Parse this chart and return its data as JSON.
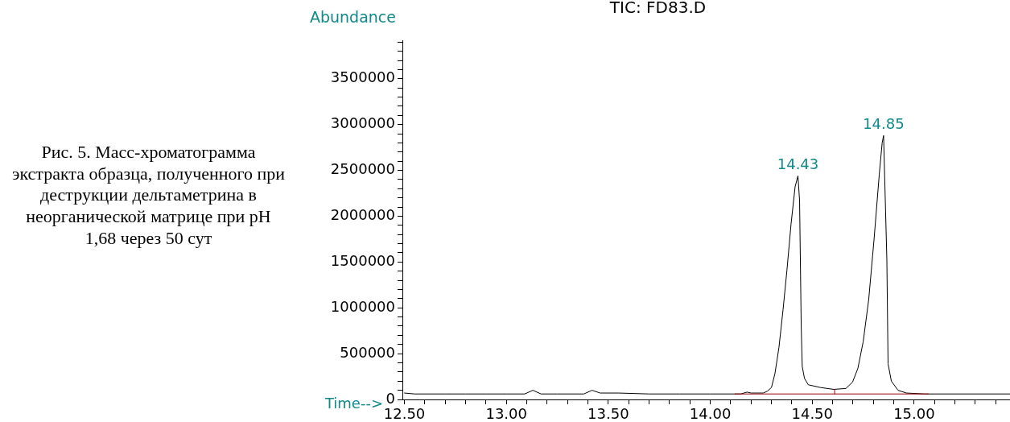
{
  "chart_data": {
    "type": "line",
    "title": "TIC: FD83.D",
    "xlabel": "Time-->",
    "ylabel": "Abundance",
    "annotations": [
      "Рис. 5. Масс-хроматограмма экстракта образца, полученного при деструкции дельтаметрина в неорганической матрице при pH 1,68 через 50 сут",
      {
        "text": "14.43",
        "x": 14.43,
        "y": 2440000
      },
      {
        "text": "14.85",
        "x": 14.85,
        "y": 2880000
      }
    ],
    "series": [
      {
        "color": "#000000",
        "x": [
          12.5,
          12.55,
          12.62,
          12.7,
          12.8,
          12.9,
          13.0,
          13.09,
          13.13,
          13.17,
          13.25,
          13.38,
          13.42,
          13.46,
          13.55,
          13.7,
          13.85,
          14.0,
          14.15,
          14.18,
          14.2,
          14.26,
          14.28,
          14.3,
          14.317,
          14.337,
          14.357,
          14.376,
          14.396,
          14.416,
          14.43,
          14.438,
          14.446,
          14.451,
          14.462,
          14.481,
          14.541,
          14.606,
          14.665,
          14.698,
          14.724,
          14.75,
          14.777,
          14.803,
          14.829,
          14.843,
          14.85,
          14.866,
          14.872,
          14.888,
          14.921,
          14.961,
          15.05,
          15.17,
          15.3,
          15.47
        ],
        "values": [
          70000,
          60000,
          60000,
          60000,
          60000,
          60000,
          60000,
          60000,
          100000,
          60000,
          60000,
          60000,
          100000,
          70000,
          70000,
          60000,
          60000,
          60000,
          60000,
          80000,
          70000,
          70000,
          90000,
          130000,
          280000,
          570000,
          980000,
          1410000,
          1910000,
          2320000,
          2440000,
          2170000,
          800000,
          360000,
          230000,
          160000,
          130000,
          110000,
          120000,
          190000,
          340000,
          630000,
          1090000,
          1740000,
          2460000,
          2800000,
          2880000,
          1530000,
          390000,
          200000,
          100000,
          70000,
          60000,
          60000,
          60000,
          60000
        ]
      },
      {
        "color": "#990000",
        "x": [
          14.12,
          15.07
        ],
        "values": [
          60000,
          60000
        ]
      },
      {
        "color": "#990000",
        "x": [
          14.61,
          14.61
        ],
        "values": [
          60000,
          110000
        ]
      }
    ],
    "xlim": [
      12.49,
      15.47
    ],
    "ylim": [
      0,
      3920000
    ],
    "xticks": [
      {
        "value": 12.5,
        "label": "12.50"
      },
      {
        "value": 12.6,
        "label": null
      },
      {
        "value": 12.7,
        "label": null
      },
      {
        "value": 12.8,
        "label": null
      },
      {
        "value": 12.9,
        "label": null
      },
      {
        "value": 13.0,
        "label": "13.00"
      },
      {
        "value": 13.1,
        "label": null
      },
      {
        "value": 13.2,
        "label": null
      },
      {
        "value": 13.3,
        "label": null
      },
      {
        "value": 13.4,
        "label": null
      },
      {
        "value": 13.5,
        "label": "13.50"
      },
      {
        "value": 13.6,
        "label": null
      },
      {
        "value": 13.7,
        "label": null
      },
      {
        "value": 13.8,
        "label": null
      },
      {
        "value": 13.9,
        "label": null
      },
      {
        "value": 14.0,
        "label": "14.00"
      },
      {
        "value": 14.1,
        "label": null
      },
      {
        "value": 14.2,
        "label": null
      },
      {
        "value": 14.3,
        "label": null
      },
      {
        "value": 14.4,
        "label": null
      },
      {
        "value": 14.5,
        "label": "14.50"
      },
      {
        "value": 14.6,
        "label": null
      },
      {
        "value": 14.7,
        "label": null
      },
      {
        "value": 14.8,
        "label": null
      },
      {
        "value": 14.9,
        "label": null
      },
      {
        "value": 15.0,
        "label": "15.00"
      },
      {
        "value": 15.1,
        "label": null
      },
      {
        "value": 15.2,
        "label": null
      },
      {
        "value": 15.3,
        "label": null
      },
      {
        "value": 15.4,
        "label": null
      }
    ],
    "yticks": [
      0,
      {
        "value": 100000,
        "label": null
      },
      {
        "value": 200000,
        "label": null
      },
      {
        "value": 300000,
        "label": null
      },
      {
        "value": 400000,
        "label": null
      },
      500000,
      {
        "value": 600000,
        "label": null
      },
      {
        "value": 700000,
        "label": null
      },
      {
        "value": 800000,
        "label": null
      },
      {
        "value": 900000,
        "label": null
      },
      1000000,
      {
        "value": 1100000,
        "label": null
      },
      {
        "value": 1200000,
        "label": null
      },
      {
        "value": 1300000,
        "label": null
      },
      {
        "value": 1400000,
        "label": null
      },
      1500000,
      {
        "value": 1600000,
        "label": null
      },
      {
        "value": 1700000,
        "label": null
      },
      {
        "value": 1800000,
        "label": null
      },
      {
        "value": 1900000,
        "label": null
      },
      2000000,
      {
        "value": 2100000,
        "label": null
      },
      {
        "value": 2200000,
        "label": null
      },
      {
        "value": 2300000,
        "label": null
      },
      {
        "value": 2400000,
        "label": null
      },
      2500000,
      {
        "value": 2600000,
        "label": null
      },
      {
        "value": 2700000,
        "label": null
      },
      {
        "value": 2800000,
        "label": null
      },
      {
        "value": 2900000,
        "label": null
      },
      3000000,
      {
        "value": 3100000,
        "label": null
      },
      {
        "value": 3200000,
        "label": null
      },
      {
        "value": 3300000,
        "label": null
      },
      {
        "value": 3400000,
        "label": null
      },
      3500000,
      {
        "value": 3600000,
        "label": null
      },
      {
        "value": 3700000,
        "label": null
      },
      {
        "value": 3800000,
        "label": null
      },
      {
        "value": 3900000,
        "label": null
      }
    ],
    "grid": false,
    "legend": false,
    "marker": "none",
    "line_style": "solid"
  }
}
